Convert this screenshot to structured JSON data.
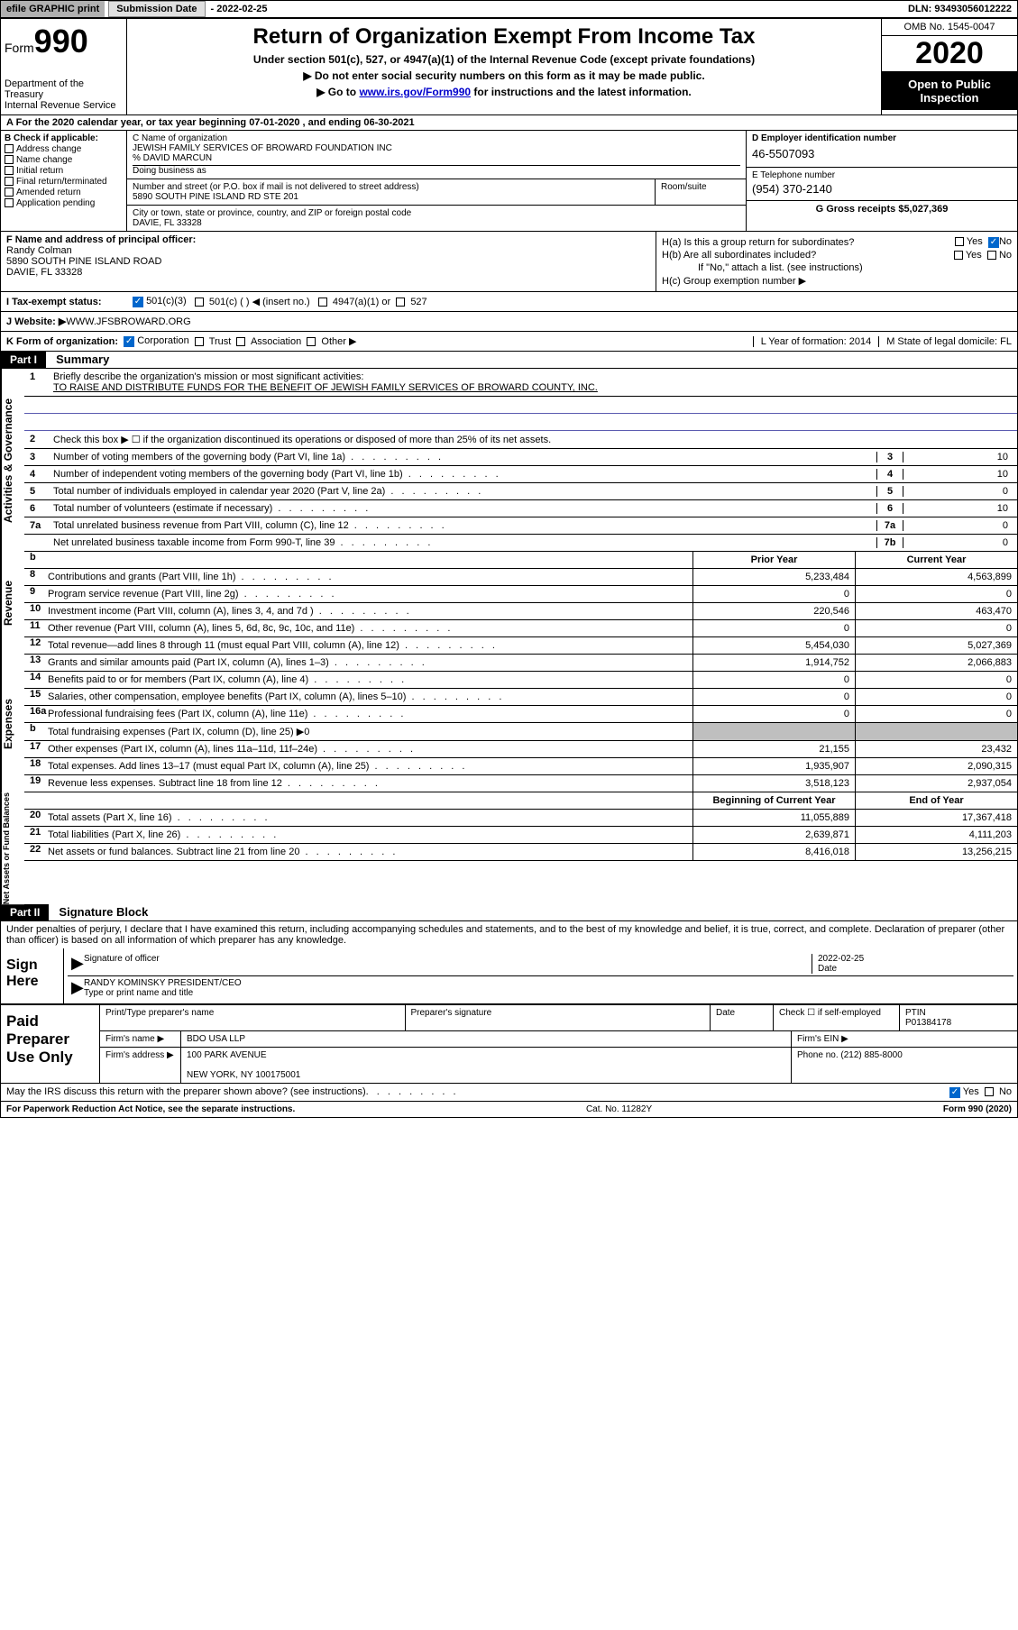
{
  "topbar": {
    "efile": "efile GRAPHIC print",
    "sub_label": "Submission Date",
    "sub_date": "- 2022-02-25",
    "dln": "DLN: 93493056012222"
  },
  "header": {
    "form_word": "Form",
    "form_no": "990",
    "dept": "Department of the Treasury\nInternal Revenue Service",
    "title": "Return of Organization Exempt From Income Tax",
    "sub1": "Under section 501(c), 527, or 4947(a)(1) of the Internal Revenue Code (except private foundations)",
    "sub2": "▶ Do not enter social security numbers on this form as it may be made public.",
    "sub3_pre": "▶ Go to ",
    "sub3_link": "www.irs.gov/Form990",
    "sub3_post": " for instructions and the latest information.",
    "omb": "OMB No. 1545-0047",
    "year": "2020",
    "open": "Open to Public Inspection"
  },
  "row_a": "A For the 2020 calendar year, or tax year beginning 07-01-2020    , and ending 06-30-2021",
  "col_b": {
    "label": "B Check if applicable:",
    "opts": [
      "Address change",
      "Name change",
      "Initial return",
      "Final return/terminated",
      "Amended return",
      "Application pending"
    ]
  },
  "col_c": {
    "name_lbl": "C Name of organization",
    "name": "JEWISH FAMILY SERVICES OF BROWARD FOUNDATION INC",
    "care": "% DAVID MARCUN",
    "dba_lbl": "Doing business as",
    "street_lbl": "Number and street (or P.O. box if mail is not delivered to street address)",
    "room_lbl": "Room/suite",
    "street": "5890 SOUTH PINE ISLAND RD STE 201",
    "city_lbl": "City or town, state or province, country, and ZIP or foreign postal code",
    "city": "DAVIE, FL  33328"
  },
  "col_de": {
    "d_lbl": "D Employer identification number",
    "ein": "46-5507093",
    "e_lbl": "E Telephone number",
    "tel": "(954) 370-2140",
    "g_lbl": "G Gross receipts $",
    "gross": "5,027,369"
  },
  "col_f": {
    "lbl": "F  Name and address of principal officer:",
    "name": "Randy Colman",
    "addr1": "5890 SOUTH PINE ISLAND ROAD",
    "addr2": "DAVIE, FL  33328"
  },
  "col_h": {
    "ha": "H(a)  Is this a group return for subordinates?",
    "hb": "H(b)  Are all subordinates included?",
    "hb_note": "If \"No,\" attach a list. (see instructions)",
    "hc": "H(c)  Group exemption number ▶",
    "yes": "Yes",
    "no": "No"
  },
  "row_i": {
    "lbl": "I  Tax-exempt status:",
    "o1": "501(c)(3)",
    "o2": "501(c) (  ) ◀ (insert no.)",
    "o3": "4947(a)(1) or",
    "o4": "527"
  },
  "row_j": {
    "lbl": "J  Website: ▶",
    "val": "  WWW.JFSBROWARD.ORG"
  },
  "row_k": {
    "lbl": "K Form of organization:",
    "o1": "Corporation",
    "o2": "Trust",
    "o3": "Association",
    "o4": "Other ▶",
    "l": "L Year of formation: 2014",
    "m": "M State of legal domicile: FL"
  },
  "part1": {
    "hdr": "Part I",
    "title": "Summary"
  },
  "gov": {
    "l1": "Briefly describe the organization's mission or most significant activities:",
    "l1v": "TO RAISE AND DISTRIBUTE FUNDS FOR THE BENEFIT OF JEWISH FAMILY SERVICES OF BROWARD COUNTY, INC.",
    "l2": "Check this box ▶ ☐  if the organization discontinued its operations or disposed of more than 25% of its net assets.",
    "rows": [
      {
        "n": "3",
        "t": "Number of voting members of the governing body (Part VI, line 1a)",
        "c": "3",
        "v": "10"
      },
      {
        "n": "4",
        "t": "Number of independent voting members of the governing body (Part VI, line 1b)",
        "c": "4",
        "v": "10"
      },
      {
        "n": "5",
        "t": "Total number of individuals employed in calendar year 2020 (Part V, line 2a)",
        "c": "5",
        "v": "0"
      },
      {
        "n": "6",
        "t": "Total number of volunteers (estimate if necessary)",
        "c": "6",
        "v": "10"
      },
      {
        "n": "7a",
        "t": "Total unrelated business revenue from Part VIII, column (C), line 12",
        "c": "7a",
        "v": "0"
      },
      {
        "n": "",
        "t": "Net unrelated business taxable income from Form 990-T, line 39",
        "c": "7b",
        "v": "0"
      }
    ]
  },
  "two_col_hdr": {
    "b": "b",
    "py": "Prior Year",
    "cy": "Current Year"
  },
  "revenue": [
    {
      "n": "8",
      "t": "Contributions and grants (Part VIII, line 1h)",
      "p": "5,233,484",
      "c": "4,563,899"
    },
    {
      "n": "9",
      "t": "Program service revenue (Part VIII, line 2g)",
      "p": "0",
      "c": "0"
    },
    {
      "n": "10",
      "t": "Investment income (Part VIII, column (A), lines 3, 4, and 7d )",
      "p": "220,546",
      "c": "463,470"
    },
    {
      "n": "11",
      "t": "Other revenue (Part VIII, column (A), lines 5, 6d, 8c, 9c, 10c, and 11e)",
      "p": "0",
      "c": "0"
    },
    {
      "n": "12",
      "t": "Total revenue—add lines 8 through 11 (must equal Part VIII, column (A), line 12)",
      "p": "5,454,030",
      "c": "5,027,369"
    }
  ],
  "expenses": [
    {
      "n": "13",
      "t": "Grants and similar amounts paid (Part IX, column (A), lines 1–3)",
      "p": "1,914,752",
      "c": "2,066,883"
    },
    {
      "n": "14",
      "t": "Benefits paid to or for members (Part IX, column (A), line 4)",
      "p": "0",
      "c": "0"
    },
    {
      "n": "15",
      "t": "Salaries, other compensation, employee benefits (Part IX, column (A), lines 5–10)",
      "p": "0",
      "c": "0"
    },
    {
      "n": "16a",
      "t": "Professional fundraising fees (Part IX, column (A), line 11e)",
      "p": "0",
      "c": "0"
    },
    {
      "n": "b",
      "t": "Total fundraising expenses (Part IX, column (D), line 25) ▶0",
      "p": "",
      "c": "",
      "shade": true
    },
    {
      "n": "17",
      "t": "Other expenses (Part IX, column (A), lines 11a–11d, 11f–24e)",
      "p": "21,155",
      "c": "23,432"
    },
    {
      "n": "18",
      "t": "Total expenses. Add lines 13–17 (must equal Part IX, column (A), line 25)",
      "p": "1,935,907",
      "c": "2,090,315"
    },
    {
      "n": "19",
      "t": "Revenue less expenses. Subtract line 18 from line 12",
      "p": "3,518,123",
      "c": "2,937,054"
    }
  ],
  "net_hdr": {
    "b": "Beginning of Current Year",
    "e": "End of Year"
  },
  "net": [
    {
      "n": "20",
      "t": "Total assets (Part X, line 16)",
      "p": "11,055,889",
      "c": "17,367,418"
    },
    {
      "n": "21",
      "t": "Total liabilities (Part X, line 26)",
      "p": "2,639,871",
      "c": "4,111,203"
    },
    {
      "n": "22",
      "t": "Net assets or fund balances. Subtract line 21 from line 20",
      "p": "8,416,018",
      "c": "13,256,215"
    }
  ],
  "part2": {
    "hdr": "Part II",
    "title": "Signature Block",
    "decl": "Under penalties of perjury, I declare that I have examined this return, including accompanying schedules and statements, and to the best of my knowledge and belief, it is true, correct, and complete. Declaration of preparer (other than officer) is based on all information of which preparer has any knowledge."
  },
  "sign": {
    "here": "Sign Here",
    "sig_lbl": "Signature of officer",
    "date_lbl": "Date",
    "date": "2022-02-25",
    "name": "RANDY KOMINSKY PRESIDENT/CEO",
    "name_lbl": "Type or print name and title"
  },
  "prep": {
    "left": "Paid Preparer Use Only",
    "h1": "Print/Type preparer's name",
    "h2": "Preparer's signature",
    "h3": "Date",
    "h4": "Check ☐ if self-employed",
    "h5": "PTIN",
    "ptin": "P01384178",
    "firm_lbl": "Firm's name   ▶",
    "firm": "BDO USA LLP",
    "ein_lbl": "Firm's EIN ▶",
    "addr_lbl": "Firm's address ▶",
    "addr1": "100 PARK AVENUE",
    "addr2": "NEW YORK, NY  100175001",
    "phone_lbl": "Phone no.",
    "phone": "(212) 885-8000"
  },
  "foot": {
    "q": "May the IRS discuss this return with the preparer shown above? (see instructions)",
    "yes": "Yes",
    "no": "No",
    "pra": "For Paperwork Reduction Act Notice, see the separate instructions.",
    "cat": "Cat. No. 11282Y",
    "form": "Form 990 (2020)"
  },
  "side_labels": {
    "gov": "Activities & Governance",
    "rev": "Revenue",
    "exp": "Expenses",
    "net": "Net Assets or Fund Balances"
  }
}
